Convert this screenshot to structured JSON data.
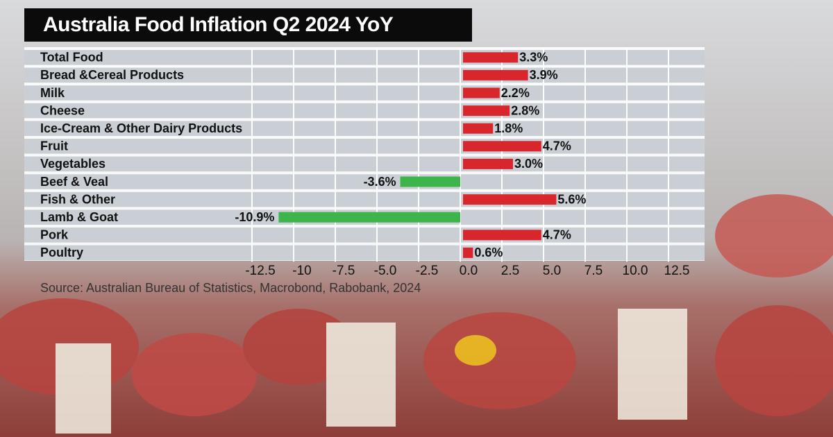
{
  "chart_data": {
    "type": "hbar",
    "title": "Australia Food Inflation Q2 2024 YoY",
    "source": "Source: Australian Bureau of Statistics, Macrobond, Rabobank, 2024",
    "categories": [
      "Total Food",
      "Bread &Cereal Products",
      "Milk",
      "Cheese",
      "Ice-Cream & Other Dairy Products",
      "Fruit",
      "Vegetables",
      "Beef & Veal",
      "Fish & Other",
      "Lamb & Goat",
      "Pork",
      "Poultry"
    ],
    "values": [
      3.3,
      3.9,
      2.2,
      2.8,
      1.8,
      4.7,
      3.0,
      -3.6,
      5.6,
      -10.9,
      4.7,
      0.6
    ],
    "value_labels": [
      "3.3%",
      "3.9%",
      "2.2%",
      "2.8%",
      "1.8%",
      "4.7%",
      "3.0%",
      "-3.6%",
      "5.6%",
      "-10.9%",
      "4.7%",
      "0.6%"
    ],
    "color": "#d9262c",
    "negative_color": "#3db54a",
    "xlim": [
      -12.5,
      12.5
    ],
    "xticks": [
      -12.5,
      -10,
      -7.5,
      {
        "value": -5,
        "label": "-5.0"
      },
      -2.5,
      {
        "value": 0,
        "label": "0.0"
      },
      2.5,
      {
        "value": 5,
        "label": "5.0"
      },
      7.5,
      {
        "value": 10,
        "label": "10.0"
      },
      12.5
    ],
    "grid": true
  }
}
